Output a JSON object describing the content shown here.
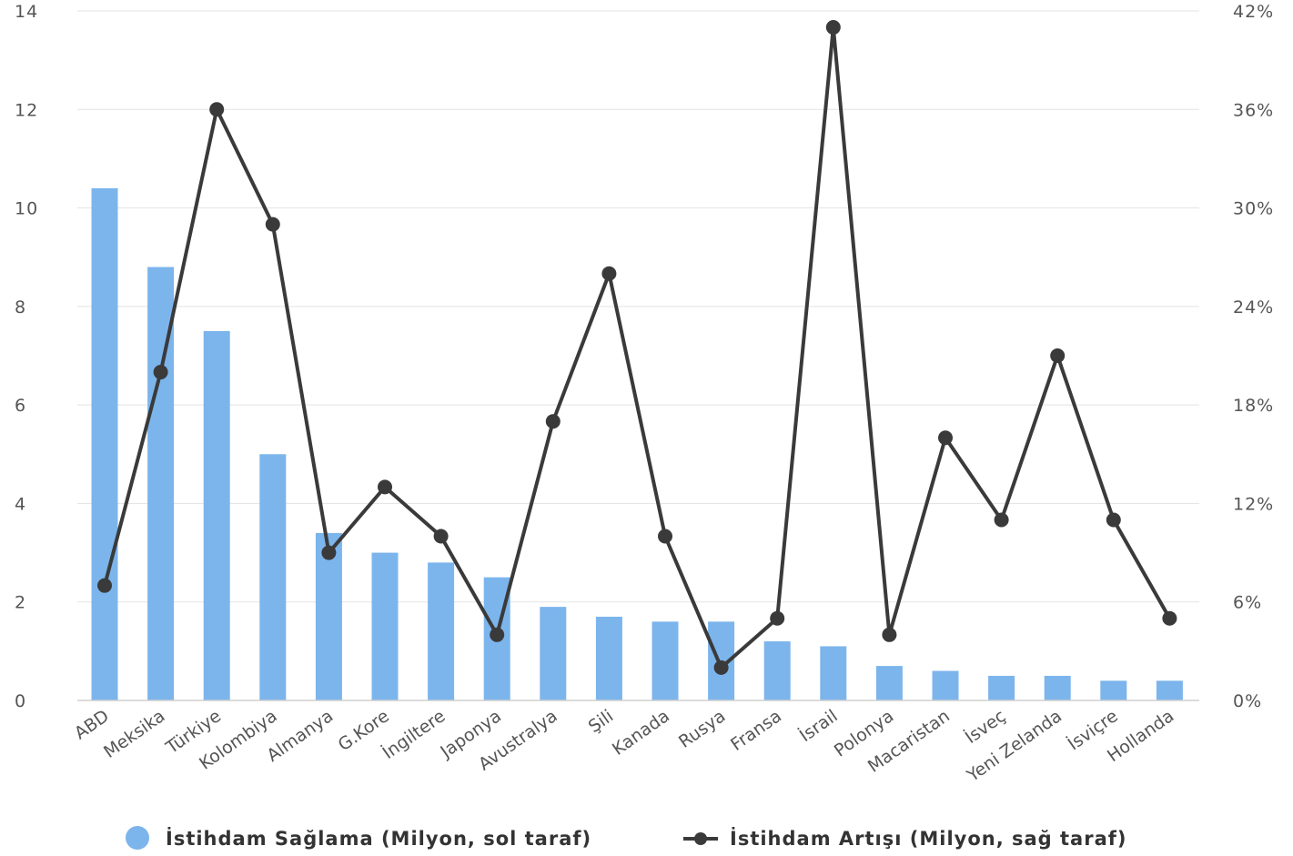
{
  "chart_data": {
    "type": "bar",
    "categories": [
      "ABD",
      "Meksika",
      "Türkiye",
      "Kolombiya",
      "Almanya",
      "G.Kore",
      "İngiltere",
      "Japonya",
      "Avustralya",
      "Şili",
      "Kanada",
      "Rusya",
      "Fransa",
      "İsrail",
      "Polonya",
      "Macaristan",
      "İsveç",
      "Yeni Zelanda",
      "İsviçre",
      "Hollanda"
    ],
    "series": [
      {
        "name": "İstihdam Sağlama (Milyon, sol taraf)",
        "type": "bar",
        "axis": "left",
        "color": "#7cb5ec",
        "values": [
          10.4,
          8.8,
          7.5,
          5.0,
          3.4,
          3.0,
          2.8,
          2.5,
          1.9,
          1.7,
          1.6,
          1.6,
          1.2,
          1.1,
          0.7,
          0.6,
          0.5,
          0.5,
          0.4,
          0.4
        ]
      },
      {
        "name": "İstihdam Artışı (Milyon, sağ taraf)",
        "type": "line",
        "axis": "right",
        "color": "#3a3a3a",
        "values": [
          7,
          20,
          36,
          29,
          9,
          13,
          10,
          4,
          17,
          26,
          10,
          2,
          5,
          41,
          4,
          16,
          11,
          21,
          11,
          5
        ]
      }
    ],
    "y_left": {
      "lim": [
        0,
        14
      ],
      "ticks": [
        0,
        2,
        4,
        6,
        8,
        10,
        12,
        14
      ],
      "tick_labels": [
        "0",
        "2",
        "4",
        "6",
        "8",
        "10",
        "12",
        "14"
      ]
    },
    "y_right": {
      "lim": [
        0,
        42
      ],
      "ticks": [
        0,
        6,
        12,
        18,
        24,
        30,
        36,
        42
      ],
      "tick_labels": [
        "0%",
        "6%",
        "12%",
        "18%",
        "24%",
        "30%",
        "36%",
        "42%"
      ]
    },
    "grid": true,
    "legend_position": "bottom-center",
    "title": "",
    "xlabel": "",
    "ylabel": ""
  }
}
